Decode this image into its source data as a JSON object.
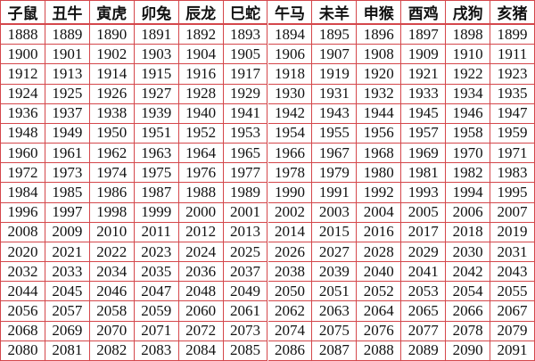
{
  "table": {
    "header": [
      "子鼠",
      "丑牛",
      "寅虎",
      "卯兔",
      "辰龙",
      "巳蛇",
      "午马",
      "未羊",
      "申猴",
      "酉鸡",
      "戌狗",
      "亥猪"
    ],
    "rows": [
      [
        1888,
        1889,
        1890,
        1891,
        1892,
        1893,
        1894,
        1895,
        1896,
        1897,
        1898,
        1899
      ],
      [
        1900,
        1901,
        1902,
        1903,
        1904,
        1905,
        1906,
        1907,
        1908,
        1909,
        1910,
        1911
      ],
      [
        1912,
        1913,
        1914,
        1915,
        1916,
        1917,
        1918,
        1919,
        1920,
        1921,
        1922,
        1923
      ],
      [
        1924,
        1925,
        1926,
        1927,
        1928,
        1929,
        1930,
        1931,
        1932,
        1933,
        1934,
        1935
      ],
      [
        1936,
        1937,
        1938,
        1939,
        1940,
        1941,
        1942,
        1943,
        1944,
        1945,
        1946,
        1947
      ],
      [
        1948,
        1949,
        1950,
        1951,
        1952,
        1953,
        1954,
        1955,
        1956,
        1957,
        1958,
        1959
      ],
      [
        1960,
        1961,
        1962,
        1963,
        1964,
        1965,
        1966,
        1967,
        1968,
        1969,
        1970,
        1971
      ],
      [
        1972,
        1973,
        1974,
        1975,
        1976,
        1977,
        1978,
        1979,
        1980,
        1981,
        1982,
        1983
      ],
      [
        1984,
        1985,
        1986,
        1987,
        1988,
        1989,
        1990,
        1991,
        1992,
        1993,
        1994,
        1995
      ],
      [
        1996,
        1997,
        1998,
        1999,
        2000,
        2001,
        2002,
        2003,
        2004,
        2005,
        2006,
        2007
      ],
      [
        2008,
        2009,
        2010,
        2011,
        2012,
        2013,
        2014,
        2015,
        2016,
        2017,
        2018,
        2019
      ],
      [
        2020,
        2021,
        2022,
        2023,
        2024,
        2025,
        2026,
        2027,
        2028,
        2029,
        2030,
        2031
      ],
      [
        2032,
        2033,
        2034,
        2035,
        2036,
        2037,
        2038,
        2039,
        2040,
        2041,
        2042,
        2043
      ],
      [
        2044,
        2045,
        2046,
        2047,
        2048,
        2049,
        2050,
        2051,
        2052,
        2053,
        2054,
        2055
      ],
      [
        2056,
        2057,
        2058,
        2059,
        2060,
        2061,
        2062,
        2063,
        2064,
        2065,
        2066,
        2067
      ],
      [
        2068,
        2069,
        2070,
        2071,
        2072,
        2073,
        2074,
        2075,
        2076,
        2077,
        2078,
        2079
      ],
      [
        2080,
        2081,
        2082,
        2083,
        2084,
        2085,
        2086,
        2087,
        2088,
        2089,
        2090,
        2091
      ]
    ]
  }
}
